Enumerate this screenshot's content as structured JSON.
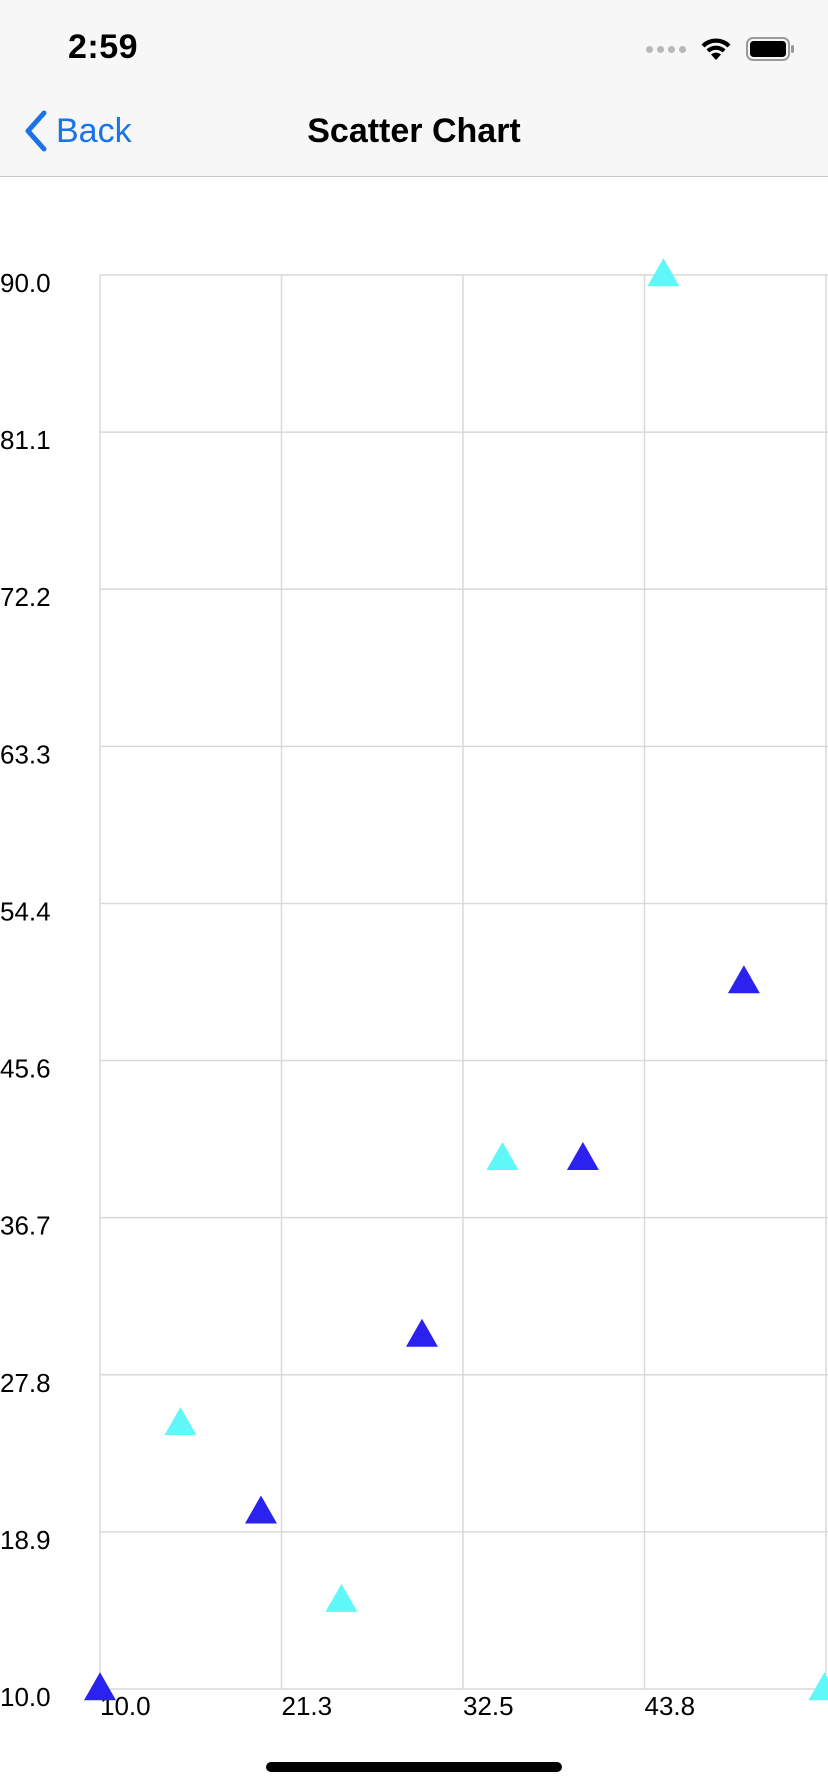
{
  "status_bar": {
    "time": "2:59",
    "icons": [
      "signal-dots-icon",
      "wifi-icon",
      "battery-icon"
    ]
  },
  "nav_bar": {
    "back_label": "Back",
    "back_icon": "chevron-left-icon",
    "title": "Scatter Chart"
  },
  "colors": {
    "accent": "#1a73e8",
    "series_dark": "#2b22f0",
    "series_light": "#5ff7f7",
    "grid": "#d9d9d9"
  },
  "chart_data": {
    "type": "scatter",
    "title": "",
    "xlabel": "",
    "ylabel": "",
    "xlim": [
      10.0,
      55.1
    ],
    "ylim": [
      10.0,
      90.0
    ],
    "x_ticks": [
      "10.0",
      "21.3",
      "32.5",
      "43.8"
    ],
    "y_ticks": [
      "90.0",
      "81.1",
      "72.2",
      "63.3",
      "54.4",
      "45.6",
      "36.7",
      "27.8",
      "18.9",
      "10.0"
    ],
    "grid": true,
    "legend": "none",
    "marker": "triangle",
    "series": [
      {
        "color": "#2b22f0",
        "points": [
          [
            10.0,
            10.0
          ],
          [
            20.0,
            20.0
          ],
          [
            30.0,
            30.0
          ],
          [
            40.0,
            40.0
          ],
          [
            50.0,
            50.0
          ]
        ]
      },
      {
        "color": "#5ff7f7",
        "points": [
          [
            15.0,
            25.0
          ],
          [
            25.0,
            15.0
          ],
          [
            35.0,
            40.0
          ],
          [
            45.0,
            90.0
          ],
          [
            55.0,
            10.0
          ]
        ]
      }
    ]
  }
}
